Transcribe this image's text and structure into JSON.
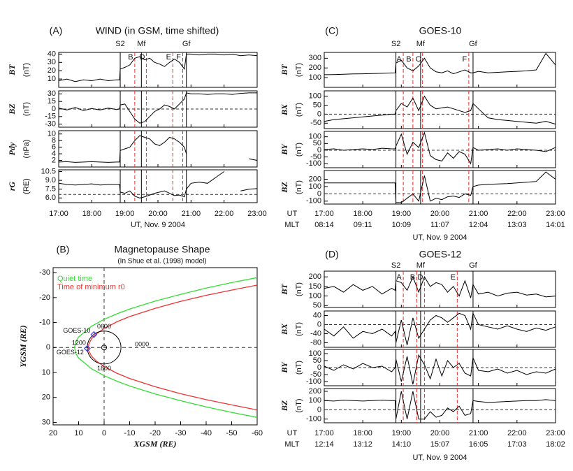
{
  "chart_data": [
    {
      "type": "line",
      "panel_label": "(A)",
      "title": "WIND (in GSM, time shifted)",
      "x": [
        17,
        17.25,
        17.5,
        17.75,
        18,
        18.25,
        18.5,
        18.75,
        18.84,
        18.86,
        19,
        19.15,
        19.3,
        19.45,
        19.6,
        19.75,
        19.9,
        20.05,
        20.2,
        20.35,
        20.5,
        20.65,
        20.8,
        20.86,
        21,
        21.25,
        21.5,
        21.75,
        22,
        22.25,
        22.5,
        22.75,
        23
      ],
      "xlim": [
        17,
        23
      ],
      "xticks": [
        {
          "value": 17,
          "label": "17:00"
        },
        {
          "value": 18,
          "label": "18:00"
        },
        {
          "value": 19,
          "label": "19:00"
        },
        {
          "value": 20,
          "label": "20:00"
        },
        {
          "value": 21,
          "label": "21:00"
        },
        {
          "value": 22,
          "label": "22:00"
        },
        {
          "value": 23,
          "label": "23:00"
        }
      ],
      "xlabel": "UT, Nov. 9 2004",
      "events": [
        {
          "label": "S2",
          "x": 18.86,
          "color": "#000000",
          "dashed": false
        },
        {
          "label": "Mf",
          "x": 19.5,
          "color": "#000000",
          "dashed": false
        },
        {
          "label": "Gf",
          "x": 20.86,
          "color": "#000000",
          "dashed": false
        }
      ],
      "markers": [
        {
          "label": "B",
          "x": 19.3,
          "color": "#e03030",
          "dashed": true
        },
        {
          "label": "D",
          "x": 19.65,
          "color": "#e03030",
          "dashed": true
        },
        {
          "label": "E",
          "x": 20.45,
          "color": "#e03030",
          "dashed": true
        },
        {
          "label": "F",
          "x": 20.75,
          "color": "#e03030",
          "dashed": true
        }
      ],
      "subplots": [
        {
          "ylabel": "BT",
          "unit": "(nT)",
          "ylim": [
            0,
            42
          ],
          "yticks": [
            10,
            20,
            30,
            40
          ],
          "values": [
            8,
            10,
            7,
            9,
            8,
            10,
            8,
            9,
            9,
            22,
            24,
            27,
            35,
            37,
            33,
            35,
            30,
            28,
            25,
            30,
            34,
            30,
            22,
            40,
            40,
            39,
            40,
            40,
            39,
            40,
            38,
            39,
            38
          ]
        },
        {
          "ylabel": "BZ",
          "unit": "(nT)",
          "ylim": [
            -36,
            36
          ],
          "yticks": [
            -30,
            -15,
            0,
            15,
            30
          ],
          "ref_line": 0,
          "values": [
            2,
            -2,
            3,
            -3,
            1,
            -2,
            2,
            -1,
            0,
            8,
            10,
            -5,
            -20,
            -28,
            -25,
            -15,
            -5,
            0,
            8,
            5,
            0,
            10,
            20,
            32,
            30,
            30,
            29,
            30,
            30,
            29,
            31,
            32,
            32
          ]
        },
        {
          "ylabel": "Pdy",
          "unit": "(nPa)",
          "ylim": [
            0,
            11
          ],
          "yticks": [
            2,
            4,
            6,
            8,
            10
          ],
          "values": [
            1.5,
            1.6,
            1.4,
            1.5,
            1.6,
            1.5,
            1.4,
            1.5,
            1.5,
            5,
            5.5,
            6,
            8,
            9.5,
            9,
            8.5,
            7,
            6.5,
            7.5,
            9,
            8.5,
            7.5,
            6,
            4,
            null,
            null,
            null,
            null,
            null,
            null,
            null,
            2.5,
            2
          ]
        },
        {
          "ylabel": "rG",
          "unit": "(RE)",
          "ylim": [
            5.2,
            10.8
          ],
          "yticks": [
            {
              "value": 6,
              "label": "6.0"
            },
            7.5,
            {
              "value": 9,
              "label": "9.0"
            },
            10.5
          ],
          "ref_line": 6.6,
          "values": [
            8.5,
            8.3,
            8.2,
            8.3,
            8.4,
            8.2,
            8.3,
            8.3,
            8.3,
            7,
            6.8,
            7.2,
            6.3,
            6,
            6.2,
            6.5,
            6.8,
            7,
            7.2,
            6.8,
            6.4,
            6.5,
            6.2,
            7.5,
            8.5,
            8.7,
            8.5,
            9.5,
            10.5,
            null,
            7.2,
            7.5,
            7.6
          ]
        }
      ]
    },
    {
      "type": "curve",
      "panel_label": "(B)",
      "title": "Magnetopause Shape",
      "subtitle": "(In Shue et al. (1998) model)",
      "xlabel": "XGSM (RE)",
      "ylabel": "YGSM (RE)",
      "xlim": [
        20,
        -60
      ],
      "ylim": [
        -32,
        31
      ],
      "xticks": [
        20,
        10,
        0,
        -10,
        -20,
        -30,
        -40,
        -50,
        -60
      ],
      "yticks": [
        -30,
        -20,
        -10,
        0,
        10,
        20,
        30
      ],
      "series": [
        {
          "name": "Quiet time",
          "color": "#33dd33",
          "x": [
            -60,
            -50,
            -40,
            -30,
            -20,
            -10,
            -5,
            0,
            5,
            10,
            11,
            11.6,
            11,
            10,
            5,
            0,
            -5,
            -10,
            -20,
            -30,
            -40,
            -50,
            -60
          ],
          "y": [
            -28,
            -26,
            -23.8,
            -21.3,
            -18.6,
            -15.4,
            -13.5,
            -11.3,
            -8.5,
            -4.2,
            -2.6,
            0,
            2.6,
            4.2,
            8.5,
            11.3,
            13.5,
            15.4,
            18.6,
            21.3,
            23.8,
            26,
            28
          ]
        },
        {
          "name": "Time of minimum r0",
          "color": "#ee3333",
          "x": [
            -60,
            -50,
            -40,
            -30,
            -20,
            -10,
            -5,
            0,
            3,
            5,
            6,
            6.2,
            6,
            5,
            3,
            0,
            -5,
            -10,
            -20,
            -30,
            -40,
            -50,
            -60
          ],
          "y": [
            -25,
            -23,
            -20.9,
            -18.5,
            -15.7,
            -12.4,
            -10.3,
            -7.6,
            -5.5,
            -3.4,
            -1.4,
            0,
            1.4,
            3.4,
            5.5,
            7.6,
            10.3,
            12.4,
            15.7,
            18.5,
            20.9,
            23,
            25
          ]
        }
      ],
      "orbit_radius": 6.6,
      "satellites": [
        {
          "name": "GOES-10",
          "x": 4,
          "y": -5.2,
          "color": "#4444ee"
        },
        {
          "name": "GOES-12",
          "x": 6.6,
          "y": 0.4,
          "color": "#4444ee"
        }
      ],
      "local_times": [
        "0600",
        "1200",
        "1800",
        "0000"
      ]
    },
    {
      "type": "line",
      "panel_label": "(C)",
      "title": "GOES-10",
      "x": [
        17,
        17.25,
        17.5,
        17.75,
        18,
        18.25,
        18.5,
        18.75,
        18.84,
        18.86,
        19,
        19.15,
        19.3,
        19.45,
        19.6,
        19.75,
        19.9,
        20.05,
        20.2,
        20.35,
        20.5,
        20.65,
        20.8,
        20.86,
        21,
        21.25,
        21.5,
        21.75,
        22,
        22.25,
        22.5,
        22.75,
        23
      ],
      "xlim": [
        17,
        23
      ],
      "xticks": [
        {
          "value": 17,
          "label": "17:00"
        },
        {
          "value": 18,
          "label": "18:00"
        },
        {
          "value": 19,
          "label": "19:00"
        },
        {
          "value": 20,
          "label": "20:00"
        },
        {
          "value": 21,
          "label": "21:00"
        },
        {
          "value": 22,
          "label": "22:00"
        },
        {
          "value": 23,
          "label": "23:00"
        }
      ],
      "xrow_label": "UT",
      "mlt_label": "MLT",
      "mlt_ticks": [
        "08:14",
        "09:11",
        "10:09",
        "11:07",
        "12:04",
        "13:03",
        "14:01"
      ],
      "xlabel": "UT, Nov. 9 2004",
      "events": [
        {
          "label": "S2",
          "x": 18.86,
          "color": "#000000",
          "dashed": false
        },
        {
          "label": "Mf",
          "x": 19.5,
          "color": "#000000",
          "dashed": false
        },
        {
          "label": "Gf",
          "x": 20.86,
          "color": "#000000",
          "dashed": false
        }
      ],
      "markers": [
        {
          "label": "A",
          "x": 19.05,
          "color": "#e03030",
          "dashed": true
        },
        {
          "label": "B",
          "x": 19.3,
          "color": "#e03030",
          "dashed": true
        },
        {
          "label": "C",
          "x": 19.55,
          "color": "#e03030",
          "dashed": true
        },
        {
          "label": "F",
          "x": 20.75,
          "color": "#e03030",
          "dashed": true
        }
      ],
      "subplots": [
        {
          "ylabel": "BT",
          "unit": "(nT)",
          "ylim": [
            0,
            360
          ],
          "yticks": [
            100,
            200,
            300
          ],
          "values": [
            130,
            132,
            135,
            138,
            140,
            142,
            145,
            148,
            150,
            250,
            280,
            200,
            170,
            220,
            300,
            200,
            160,
            150,
            170,
            140,
            160,
            180,
            150,
            150,
            165,
            150,
            155,
            160,
            165,
            170,
            180,
            350,
            230
          ]
        },
        {
          "ylabel": "BX",
          "unit": "(nT)",
          "ylim": [
            -80,
            130
          ],
          "yticks": [
            -50,
            0,
            50,
            100
          ],
          "ref_line": 0,
          "values": [
            -40,
            -30,
            -25,
            -20,
            -15,
            -10,
            -5,
            0,
            0,
            20,
            60,
            40,
            90,
            20,
            100,
            50,
            30,
            35,
            40,
            30,
            20,
            10,
            20,
            60,
            30,
            -20,
            -30,
            -35,
            -40,
            -45,
            -50,
            -40,
            -55
          ]
        },
        {
          "ylabel": "BY",
          "unit": "(nT)",
          "ylim": [
            -130,
            140
          ],
          "yticks": [
            -100,
            -50,
            0,
            50,
            100
          ],
          "ref_line": 0,
          "values": [
            5,
            10,
            0,
            5,
            10,
            5,
            15,
            10,
            10,
            30,
            120,
            -30,
            60,
            20,
            130,
            -40,
            -70,
            -80,
            -20,
            -60,
            -10,
            -30,
            -100,
            20,
            0,
            5,
            10,
            0,
            10,
            5,
            0,
            -10,
            20
          ]
        },
        {
          "ylabel": "BZ",
          "unit": "(nT)",
          "ylim": [
            -140,
            320
          ],
          "yticks": [
            -100,
            0,
            100,
            200
          ],
          "ref_line": 0,
          "values": [
            150,
            150,
            150,
            150,
            150,
            150,
            150,
            150,
            150,
            -120,
            -120,
            -60,
            0,
            -100,
            250,
            -100,
            -60,
            -80,
            -40,
            -30,
            -50,
            0,
            -20,
            100,
            120,
            130,
            135,
            140,
            150,
            160,
            170,
            300,
            200
          ]
        }
      ]
    },
    {
      "type": "line",
      "panel_label": "(D)",
      "title": "GOES-12",
      "x": [
        17,
        17.25,
        17.5,
        17.75,
        18,
        18.25,
        18.5,
        18.75,
        18.84,
        18.86,
        19,
        19.15,
        19.3,
        19.45,
        19.6,
        19.75,
        19.9,
        20.05,
        20.2,
        20.35,
        20.5,
        20.65,
        20.8,
        20.86,
        21,
        21.25,
        21.5,
        21.75,
        22,
        22.25,
        22.5,
        22.75,
        23
      ],
      "xlim": [
        17,
        23
      ],
      "xticks": [
        {
          "value": 17,
          "label": "17:00"
        },
        {
          "value": 18,
          "label": "18:00"
        },
        {
          "value": 19,
          "label": "19:00"
        },
        {
          "value": 20,
          "label": "20:00"
        },
        {
          "value": 21,
          "label": "21:00"
        },
        {
          "value": 22,
          "label": "22:00"
        },
        {
          "value": 23,
          "label": "23:00"
        }
      ],
      "xrow_label": "UT",
      "mlt_label": "MLT",
      "mlt_ticks": [
        "12:14",
        "13:12",
        "14:10",
        "15:07",
        "16:05",
        "17:03",
        "18:02"
      ],
      "xlabel": "UT, Nov. 9 2004",
      "events": [
        {
          "label": "S2",
          "x": 18.86,
          "color": "#000000",
          "dashed": false
        },
        {
          "label": "Mf",
          "x": 19.5,
          "color": "#000000",
          "dashed": false
        },
        {
          "label": "Gf",
          "x": 20.86,
          "color": "#000000",
          "dashed": false
        }
      ],
      "markers": [
        {
          "label": "A",
          "x": 19.05,
          "color": "#e03030",
          "dashed": true
        },
        {
          "label": "B",
          "x": 19.4,
          "color": "#e03030",
          "dashed": true
        },
        {
          "label": "D",
          "x": 19.6,
          "color": "#e03030",
          "dashed": true
        },
        {
          "label": "E",
          "x": 20.45,
          "color": "#e03030",
          "dashed": true
        }
      ],
      "subplots": [
        {
          "ylabel": "BT",
          "unit": "(nT)",
          "ylim": [
            40,
            230
          ],
          "yticks": [
            50,
            100,
            150,
            200
          ],
          "values": [
            140,
            150,
            120,
            160,
            130,
            150,
            110,
            140,
            130,
            180,
            170,
            130,
            200,
            120,
            200,
            150,
            170,
            160,
            120,
            150,
            100,
            180,
            90,
            160,
            110,
            120,
            100,
            115,
            120,
            105,
            110,
            95,
            100
          ]
        },
        {
          "ylabel": "BX",
          "unit": "(nT)",
          "ylim": [
            -100,
            60
          ],
          "yticks": [
            -80,
            -40,
            0,
            40
          ],
          "ref_line": 0,
          "values": [
            -20,
            -50,
            -10,
            -60,
            -30,
            -40,
            -20,
            -50,
            -30,
            -80,
            20,
            -90,
            30,
            -60,
            -20,
            20,
            40,
            30,
            10,
            30,
            50,
            40,
            -20,
            50,
            0,
            -10,
            -20,
            -5,
            -20,
            -30,
            -15,
            -25,
            -10
          ]
        },
        {
          "ylabel": "BY",
          "unit": "(nT)",
          "ylim": [
            -130,
            130
          ],
          "yticks": [
            -100,
            -50,
            0,
            50,
            100
          ],
          "ref_line": 0,
          "values": [
            10,
            -20,
            20,
            -10,
            30,
            0,
            10,
            -30,
            0,
            60,
            -100,
            80,
            -120,
            90,
            20,
            -80,
            60,
            -60,
            50,
            0,
            30,
            -40,
            -60,
            70,
            -20,
            -30,
            -10,
            -40,
            -20,
            -50,
            -30,
            -40,
            -10
          ]
        },
        {
          "ylabel": "BZ",
          "unit": "(nT)",
          "ylim": [
            -140,
            230
          ],
          "yticks": [
            -100,
            0,
            100,
            200
          ],
          "ref_line": 0,
          "values": [
            100,
            95,
            105,
            100,
            95,
            100,
            105,
            100,
            100,
            -100,
            200,
            -100,
            200,
            -100,
            -100,
            -20,
            -80,
            -60,
            20,
            -20,
            40,
            -60,
            -40,
            100,
            90,
            80,
            85,
            90,
            95,
            100,
            100,
            110,
            100
          ]
        }
      ]
    }
  ]
}
